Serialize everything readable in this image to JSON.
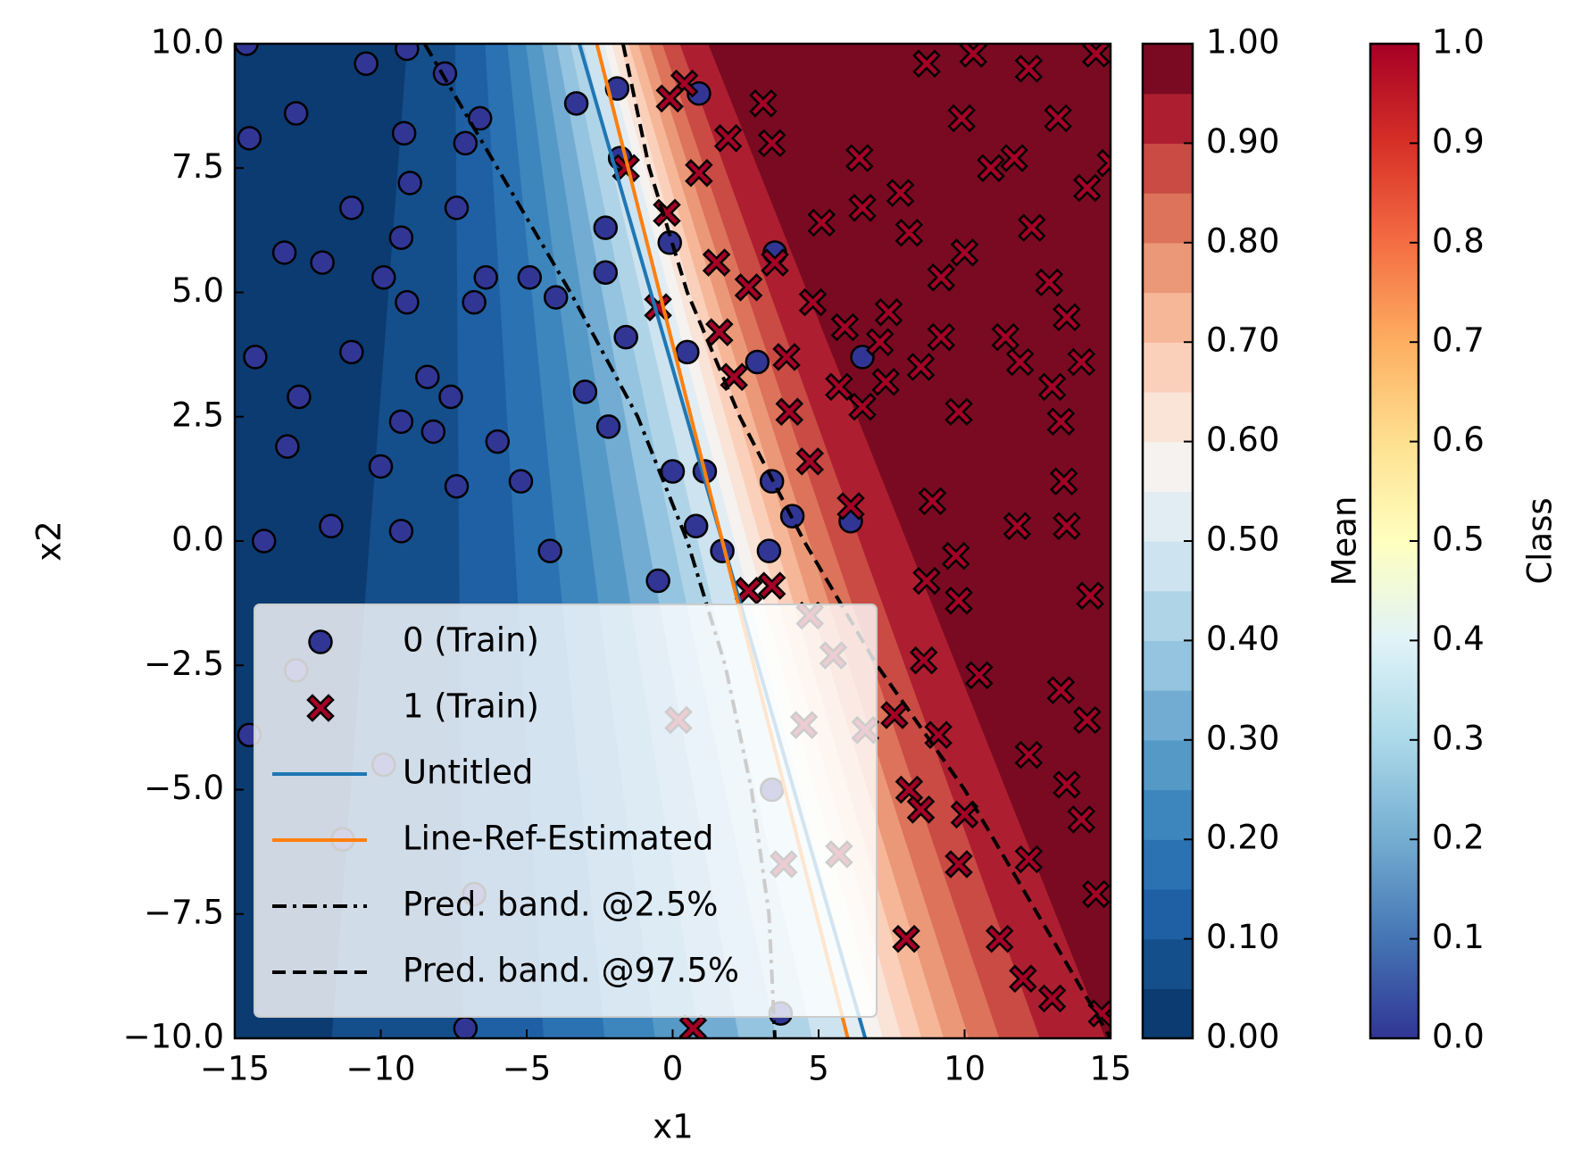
{
  "chart_data": {
    "type": "scatter",
    "xlabel": "x1",
    "ylabel": "x2",
    "xlim": [
      -15,
      15
    ],
    "ylim": [
      -10,
      10
    ],
    "xticks": [
      {
        "value": -15,
        "label": "−15"
      },
      {
        "value": -10,
        "label": "−10"
      },
      {
        "value": -5,
        "label": "−5"
      },
      0,
      5,
      10,
      15
    ],
    "yticks": [
      {
        "value": -10,
        "label": "−10.0"
      },
      {
        "value": -7.5,
        "label": "−7.5"
      },
      {
        "value": -5,
        "label": "−5.0"
      },
      {
        "value": -2.5,
        "label": "−2.5"
      },
      {
        "value": 0,
        "label": "0.0"
      },
      {
        "value": 2.5,
        "label": "2.5"
      },
      {
        "value": 5,
        "label": "5.0"
      },
      {
        "value": 7.5,
        "label": "7.5"
      },
      {
        "value": 10,
        "label": "10.0"
      }
    ],
    "legend": "lower left",
    "series": [
      {
        "name": "0 (Train)",
        "kind": "scatter",
        "marker": "o",
        "color": "#313695",
        "x": [
          -14.6,
          -9.1,
          -10.5,
          -7.8,
          -12.9,
          -14.5,
          -7.1,
          -6.6,
          -3.3,
          -1.9,
          0.9,
          -1.8,
          -9.2,
          -9.0,
          -7.4,
          -11.0,
          -2.3,
          -9.3,
          -0.1,
          -13.3,
          -12.0,
          -6.4,
          -4.9,
          -9.9,
          -2.3,
          -6.8,
          -4.0,
          -9.1,
          -1.6,
          0.5,
          2.9,
          -11.0,
          -14.3,
          -8.4,
          -3.0,
          -7.6,
          -12.8,
          -9.3,
          -2.2,
          -8.2,
          -13.2,
          -6.0,
          0.0,
          1.1,
          3.4,
          -10.0,
          -7.4,
          -5.2,
          4.1,
          -11.7,
          0.8,
          -9.3,
          -14.0,
          -0.5,
          1.7,
          3.3,
          -4.2,
          6.5,
          3.5,
          6.1,
          3.4,
          3.7,
          -7.1,
          -12.9,
          -14.5,
          -9.9,
          -6.8,
          -11.3
        ],
        "values": [
          10.0,
          9.9,
          9.6,
          9.4,
          8.6,
          8.1,
          8.0,
          8.5,
          8.8,
          9.1,
          9.0,
          7.7,
          8.2,
          7.2,
          6.7,
          6.7,
          6.3,
          6.1,
          6.0,
          5.8,
          5.6,
          5.3,
          5.3,
          5.3,
          5.4,
          4.8,
          4.9,
          4.8,
          4.1,
          3.8,
          3.6,
          3.8,
          3.7,
          3.3,
          3.0,
          2.9,
          2.9,
          2.4,
          2.3,
          2.2,
          1.9,
          2.0,
          1.4,
          1.4,
          1.2,
          1.5,
          1.1,
          1.2,
          0.5,
          0.3,
          0.3,
          0.2,
          0.0,
          -0.8,
          -0.2,
          -0.2,
          -0.2,
          3.7,
          5.8,
          0.4,
          -5.0,
          -9.5,
          -9.8,
          -2.6,
          -3.9,
          -4.5,
          -7.1,
          -6.0
        ]
      },
      {
        "name": "1 (Train)",
        "kind": "scatter",
        "marker": "X",
        "color": "#a50026",
        "x": [
          8.7,
          10.3,
          12.2,
          14.5,
          0.4,
          -0.1,
          3.1,
          9.9,
          13.2,
          1.9,
          3.4,
          6.4,
          11.7,
          14.2,
          0.9,
          15.0,
          -1.6,
          7.8,
          10.9,
          -0.2,
          6.5,
          8.1,
          12.3,
          5.1,
          1.5,
          3.5,
          9.2,
          10.0,
          12.9,
          2.6,
          -0.5,
          4.8,
          7.4,
          13.5,
          1.6,
          5.9,
          9.2,
          11.4,
          3.9,
          7.1,
          11.9,
          14.0,
          2.1,
          5.7,
          8.5,
          7.3,
          13.0,
          4.0,
          6.5,
          9.8,
          13.3,
          4.7,
          13.4,
          8.9,
          6.1,
          11.8,
          13.5,
          9.7,
          2.6,
          3.4,
          8.7,
          9.8,
          14.3,
          4.7,
          10.5,
          5.5,
          8.6,
          13.3,
          7.6,
          9.1,
          12.2,
          14.2,
          4.5,
          6.6,
          8.1,
          10.0,
          14.0,
          8.5,
          13.5,
          3.8,
          5.7,
          9.8,
          12.2,
          14.5,
          8.0,
          11.2,
          12.0,
          13.0,
          14.7,
          0.7,
          0.2
        ],
        "values": [
          9.6,
          9.8,
          9.5,
          9.8,
          9.2,
          8.9,
          8.8,
          8.5,
          8.5,
          8.1,
          8.0,
          7.7,
          7.7,
          7.1,
          7.4,
          7.6,
          7.5,
          7.0,
          7.5,
          6.6,
          6.7,
          6.2,
          6.3,
          6.4,
          5.6,
          5.6,
          5.3,
          5.8,
          5.2,
          5.1,
          4.7,
          4.8,
          4.6,
          4.5,
          4.2,
          4.3,
          4.1,
          4.1,
          3.7,
          4.0,
          3.6,
          3.6,
          3.3,
          3.1,
          3.5,
          3.2,
          3.1,
          2.6,
          2.7,
          2.6,
          2.4,
          1.6,
          1.2,
          0.8,
          0.7,
          0.3,
          0.3,
          -0.3,
          -1.0,
          -0.9,
          -0.8,
          -1.2,
          -1.1,
          -1.5,
          -2.7,
          -2.3,
          -2.4,
          -3.0,
          -3.5,
          -3.9,
          -4.3,
          -3.6,
          -3.7,
          -3.8,
          -5.0,
          -5.5,
          -5.6,
          -5.4,
          -4.9,
          -6.5,
          -6.3,
          -6.5,
          -6.4,
          -7.1,
          -8.0,
          -8.0,
          -8.8,
          -9.2,
          -9.5,
          -9.8,
          -3.6
        ]
      },
      {
        "name": "Untitled",
        "kind": "line",
        "linestyle": "solid",
        "color": "#1f77b4",
        "x": [
          -3.2,
          6.6
        ],
        "values": [
          10,
          -10
        ]
      },
      {
        "name": "Line-Ref-Estimated",
        "kind": "line",
        "linestyle": "solid",
        "color": "#ff7f0e",
        "x": [
          -2.6,
          6.0
        ],
        "values": [
          10,
          -10
        ]
      },
      {
        "name": "Pred. band. @2.5%",
        "kind": "line",
        "linestyle": "dashdot",
        "color": "#000000",
        "x": [
          -8.5,
          -6,
          -3.5,
          -1.2,
          0.5,
          1.8,
          2.7,
          3.3,
          3.5
        ],
        "values": [
          10,
          7.5,
          5,
          2.5,
          0,
          -2.5,
          -5,
          -7.5,
          -10
        ]
      },
      {
        "name": "Pred. band. @97.5%",
        "kind": "line",
        "linestyle": "dashed",
        "color": "#000000",
        "x": [
          -1.7,
          -0.8,
          0.5,
          2.3,
          4.5,
          7.0,
          10,
          12.5,
          15
        ],
        "values": [
          10,
          7.5,
          5,
          2.5,
          0,
          -2.5,
          -5,
          -7.5,
          -10
        ]
      }
    ],
    "contour": {
      "label": "Mean",
      "levels": [
        0,
        0.05,
        0.1,
        0.15,
        0.2,
        0.25,
        0.3,
        0.35,
        0.4,
        0.45,
        0.5,
        0.55,
        0.6,
        0.65,
        0.7,
        0.75,
        0.8,
        0.85,
        0.9,
        0.95,
        1.0
      ],
      "colors": [
        "#0b3b70",
        "#154f8b",
        "#1e60a3",
        "#2b72b3",
        "#3d86bd",
        "#5599c7",
        "#72acd3",
        "#94c4df",
        "#b0d4e7",
        "#cde3ef",
        "#e2edf3",
        "#f5f2f0",
        "#fae3d7",
        "#fbd0bb",
        "#f6b799",
        "#eb9878",
        "#dc735a",
        "#c94b44",
        "#ad1f30",
        "#7a0a22"
      ],
      "ticks": [
        {
          "value": 0,
          "label": "0.00"
        },
        {
          "value": 0.1,
          "label": "0.10"
        },
        {
          "value": 0.2,
          "label": "0.20"
        },
        {
          "value": 0.3,
          "label": "0.30"
        },
        {
          "value": 0.4,
          "label": "0.40"
        },
        {
          "value": 0.5,
          "label": "0.50"
        },
        {
          "value": 0.6,
          "label": "0.60"
        },
        {
          "value": 0.7,
          "label": "0.70"
        },
        {
          "value": 0.8,
          "label": "0.80"
        },
        {
          "value": 0.9,
          "label": "0.90"
        },
        {
          "value": 1,
          "label": "1.00"
        }
      ]
    },
    "class_colorbar": {
      "label": "Class",
      "lim": [
        0,
        1
      ],
      "colors": [
        "#313695",
        "#4575b4",
        "#74add1",
        "#abd9e9",
        "#e0f3f8",
        "#ffffbf",
        "#fee090",
        "#fdae61",
        "#f46d43",
        "#d73027",
        "#a50026"
      ],
      "ticks": [
        {
          "value": 0,
          "label": "0.0"
        },
        {
          "value": 0.1,
          "label": "0.1"
        },
        {
          "value": 0.2,
          "label": "0.2"
        },
        {
          "value": 0.3,
          "label": "0.3"
        },
        {
          "value": 0.4,
          "label": "0.4"
        },
        {
          "value": 0.5,
          "label": "0.5"
        },
        {
          "value": 0.6,
          "label": "0.6"
        },
        {
          "value": 0.7,
          "label": "0.7"
        },
        {
          "value": 0.8,
          "label": "0.8"
        },
        {
          "value": 0.9,
          "label": "0.9"
        },
        {
          "value": 1,
          "label": "1.0"
        }
      ]
    }
  }
}
